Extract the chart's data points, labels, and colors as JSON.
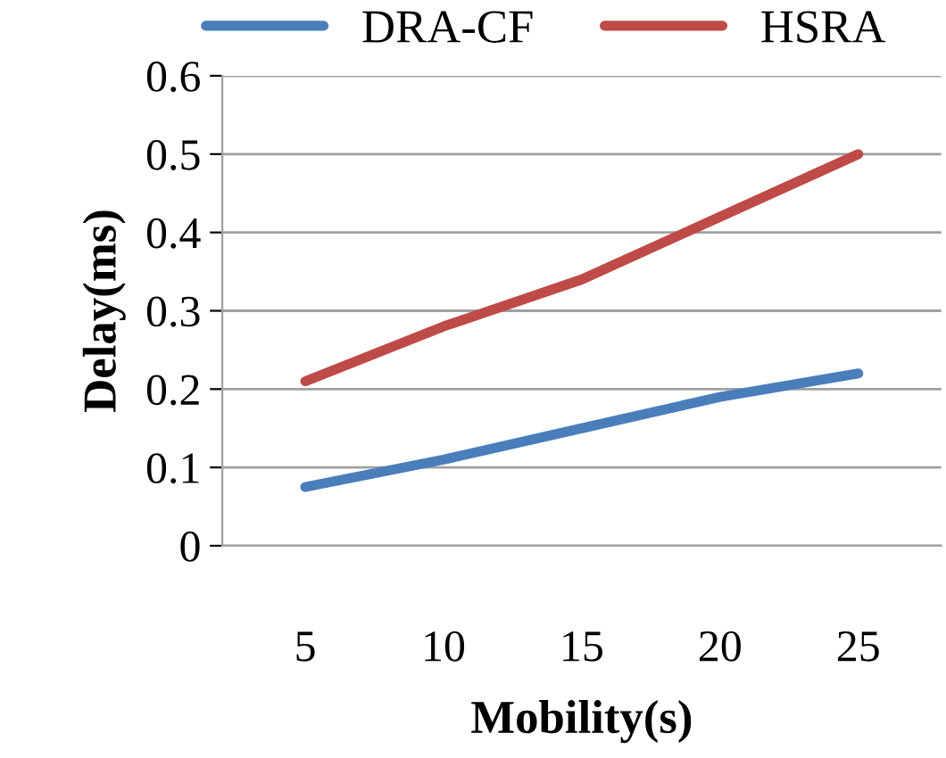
{
  "chart_data": {
    "type": "line",
    "xlabel": "Mobility(s)",
    "ylabel": "Delay(ms)",
    "categories": [
      "5",
      "10",
      "15",
      "20",
      "25"
    ],
    "series": [
      {
        "name": "DRA-CF",
        "color": "#4a7ebb",
        "values": [
          0.075,
          0.11,
          0.15,
          0.19,
          0.22
        ]
      },
      {
        "name": "HSRA",
        "color": "#be4b48",
        "values": [
          0.21,
          0.28,
          0.34,
          0.42,
          0.5
        ]
      }
    ],
    "ylim": [
      0,
      0.6
    ],
    "yticks": [
      0,
      0.1,
      0.2,
      0.3,
      0.4,
      0.5,
      0.6
    ],
    "grid": "y",
    "legend": "top",
    "marker": "none",
    "line_style": "solid"
  }
}
